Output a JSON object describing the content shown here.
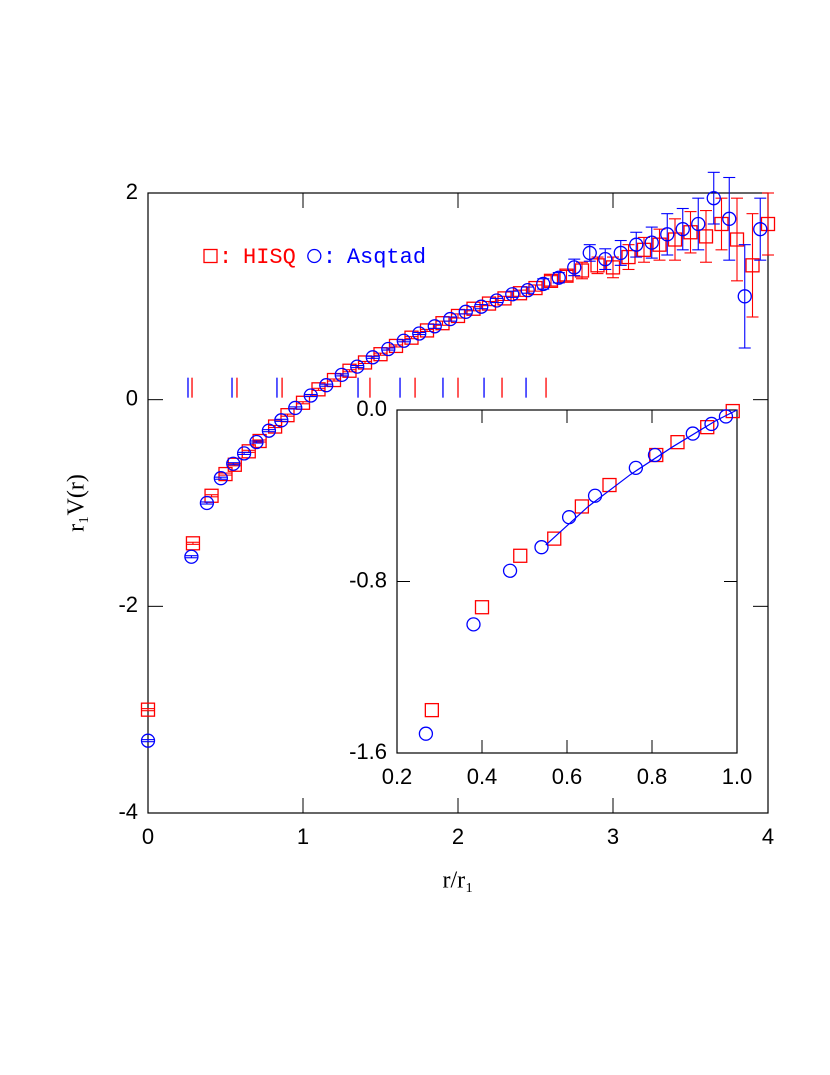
{
  "chart_data": [
    {
      "type": "scatter",
      "xlabel": "r/r₁",
      "ylabel": "r₁V(r)",
      "xlim": [
        0,
        4
      ],
      "ylim": [
        -4,
        2
      ],
      "xticks": [
        0,
        1,
        2,
        3,
        4
      ],
      "yticks": [
        -4,
        -2,
        0,
        2
      ],
      "legend_separator": ":",
      "series": [
        {
          "name": "HISQ",
          "color": "#ff0000",
          "marker": "square",
          "x": [
            0,
            0.29,
            0.41,
            0.5,
            0.56,
            0.65,
            0.72,
            0.82,
            0.9,
            1.0,
            1.1,
            1.2,
            1.3,
            1.4,
            1.5,
            1.6,
            1.7,
            1.8,
            1.9,
            2.0,
            2.1,
            2.2,
            2.3,
            2.4,
            2.5,
            2.6,
            2.7,
            2.8,
            2.9,
            3.0,
            3.1,
            3.2,
            3.3,
            3.4,
            3.5,
            3.6,
            3.7,
            3.8,
            3.9,
            4.0
          ],
          "values": [
            -3.0,
            -1.39,
            -0.93,
            -0.72,
            -0.63,
            -0.5,
            -0.4,
            -0.26,
            -0.15,
            -0.03,
            0.1,
            0.19,
            0.28,
            0.36,
            0.44,
            0.52,
            0.6,
            0.67,
            0.74,
            0.81,
            0.88,
            0.93,
            0.98,
            1.03,
            1.08,
            1.15,
            1.2,
            1.25,
            1.3,
            1.28,
            1.38,
            1.45,
            1.5,
            1.55,
            1.62,
            1.58,
            1.7,
            1.55,
            1.3,
            1.7
          ],
          "errors": [
            0.01,
            0.01,
            0.01,
            0.01,
            0.01,
            0.01,
            0.01,
            0.01,
            0.01,
            0.01,
            0.01,
            0.01,
            0.01,
            0.01,
            0.01,
            0.01,
            0.01,
            0.01,
            0.02,
            0.02,
            0.02,
            0.02,
            0.02,
            0.03,
            0.03,
            0.05,
            0.05,
            0.08,
            0.08,
            0.1,
            0.12,
            0.12,
            0.15,
            0.2,
            0.2,
            0.25,
            0.25,
            0.4,
            0.5,
            0.3
          ]
        },
        {
          "name": "Asqtad",
          "color": "#0000ff",
          "marker": "circle",
          "x": [
            0,
            0.28,
            0.38,
            0.47,
            0.55,
            0.62,
            0.7,
            0.78,
            0.86,
            0.95,
            1.05,
            1.15,
            1.25,
            1.35,
            1.45,
            1.55,
            1.65,
            1.75,
            1.85,
            1.95,
            2.05,
            2.15,
            2.25,
            2.35,
            2.45,
            2.55,
            2.65,
            2.75,
            2.85,
            2.95,
            3.05,
            3.15,
            3.25,
            3.35,
            3.45,
            3.55,
            3.65,
            3.75,
            3.85,
            3.95
          ],
          "values": [
            -3.3,
            -1.52,
            -1.0,
            -0.76,
            -0.62,
            -0.52,
            -0.41,
            -0.3,
            -0.2,
            -0.08,
            0.04,
            0.14,
            0.24,
            0.32,
            0.41,
            0.49,
            0.57,
            0.64,
            0.71,
            0.78,
            0.85,
            0.9,
            0.96,
            1.02,
            1.06,
            1.12,
            1.18,
            1.28,
            1.42,
            1.36,
            1.42,
            1.5,
            1.52,
            1.6,
            1.65,
            1.7,
            1.95,
            1.75,
            1.0,
            1.65
          ],
          "errors": [
            0.01,
            0.01,
            0.01,
            0.01,
            0.01,
            0.01,
            0.01,
            0.01,
            0.01,
            0.01,
            0.01,
            0.01,
            0.01,
            0.01,
            0.01,
            0.01,
            0.01,
            0.01,
            0.02,
            0.02,
            0.02,
            0.02,
            0.02,
            0.03,
            0.03,
            0.05,
            0.05,
            0.08,
            0.08,
            0.1,
            0.12,
            0.12,
            0.15,
            0.2,
            0.2,
            0.25,
            0.25,
            0.4,
            0.5,
            0.3
          ]
        }
      ],
      "reference_ticks": [
        {
          "color": "#ff0000",
          "x": [
            0.284,
            0.574,
            0.865,
            1.432,
            1.723,
            2.0,
            2.284,
            2.568
          ]
        },
        {
          "color": "#0000ff",
          "x": [
            0.258,
            0.542,
            0.832,
            1.355,
            1.626,
            1.903,
            2.168,
            2.439
          ]
        }
      ]
    },
    {
      "type": "scatter",
      "xlim": [
        0.2,
        1.0
      ],
      "ylim": [
        -1.6,
        0.0
      ],
      "xticks": [
        0.2,
        0.4,
        0.6,
        0.8,
        {
          "value": 1.0,
          "label": "1.0"
        }
      ],
      "yticks": [
        -1.6,
        -0.8,
        {
          "value": 0,
          "label": "0.0"
        }
      ],
      "series": [
        {
          "color": "#ff0000",
          "marker": "square",
          "x": [
            0.282,
            0.4,
            0.49,
            0.57,
            0.635,
            0.7,
            0.81,
            0.86,
            0.93,
            0.99
          ],
          "values": [
            -1.4,
            -0.92,
            -0.68,
            -0.6,
            -0.45,
            -0.35,
            -0.21,
            -0.15,
            -0.08,
            -0.005
          ]
        },
        {
          "color": "#0000ff",
          "marker": "circle",
          "x": [
            0.268,
            0.38,
            0.466,
            0.54,
            0.605,
            0.666,
            0.762,
            0.807,
            0.896,
            0.94,
            0.974
          ],
          "values": [
            -1.51,
            -1.0,
            -0.75,
            -0.64,
            -0.5,
            -0.4,
            -0.27,
            -0.21,
            -0.11,
            -0.065,
            -0.03
          ]
        },
        {
          "color": "#0000ff",
          "marker": "line",
          "x": [
            0.55,
            0.65,
            0.75,
            0.85,
            0.95,
            1.0
          ],
          "values": [
            -0.63,
            -0.45,
            -0.3,
            -0.17,
            -0.05,
            0.0
          ]
        }
      ]
    }
  ]
}
